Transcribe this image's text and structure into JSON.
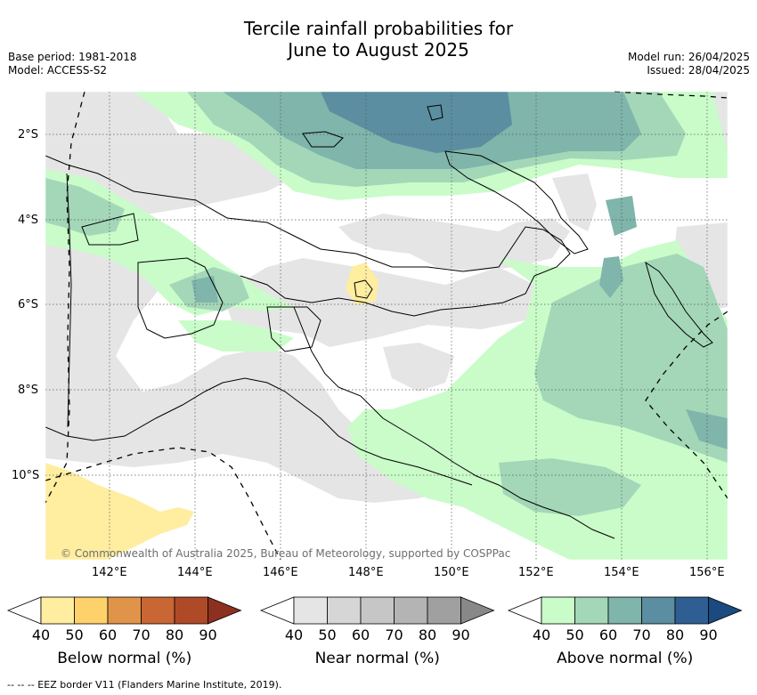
{
  "header": {
    "title_line1": "Tercile rainfall probabilities for",
    "title_line2": "June to August 2025",
    "base_period": "Base period: 1981-2018",
    "model": "Model: ACCESS-S2",
    "model_run": "Model run: 26/04/2025",
    "issued": "Issued: 28/04/2025"
  },
  "map": {
    "region": "Papua New Guinea",
    "lat_labels": [
      "2°S",
      "4°S",
      "6°S",
      "8°S",
      "10°S"
    ],
    "lon_labels": [
      "142°E",
      "144°E",
      "146°E",
      "148°E",
      "150°E",
      "152°E",
      "154°E",
      "156°E"
    ],
    "copyright": "© Commonwealth of Australia 2025, Bureau of Meteorology, supported by COSPPac"
  },
  "colorbars": [
    {
      "label": "Below normal (%)",
      "ticks": [
        "40",
        "50",
        "60",
        "70",
        "80",
        "90"
      ],
      "colors": [
        "#ffeda0",
        "#fed16a",
        "#e0944a",
        "#c86634",
        "#ae4a28",
        "#8c3020"
      ]
    },
    {
      "label": "Near normal (%)",
      "ticks": [
        "40",
        "50",
        "60",
        "70",
        "80",
        "90"
      ],
      "colors": [
        "#e5e5e5",
        "#d6d6d6",
        "#c6c6c6",
        "#b4b4b4",
        "#a0a0a0",
        "#888888"
      ]
    },
    {
      "label": "Above normal (%)",
      "ticks": [
        "40",
        "50",
        "60",
        "70",
        "80",
        "90"
      ],
      "colors": [
        "#c9fcc9",
        "#a3d7b8",
        "#7fb5aa",
        "#5a8ea0",
        "#2f5f92",
        "#1a4a80"
      ]
    }
  ],
  "footnote": "-- -- -- EEZ border V11 (Flanders Marine Institute, 2019).",
  "colors": {
    "below": "#ffeda0",
    "near": "#e5e5e5",
    "above_50": "#c9fcc9",
    "above_60": "#a3d7b8",
    "above_70": "#7fb5aa",
    "above_80": "#5a8ea0",
    "border": "#000000"
  }
}
